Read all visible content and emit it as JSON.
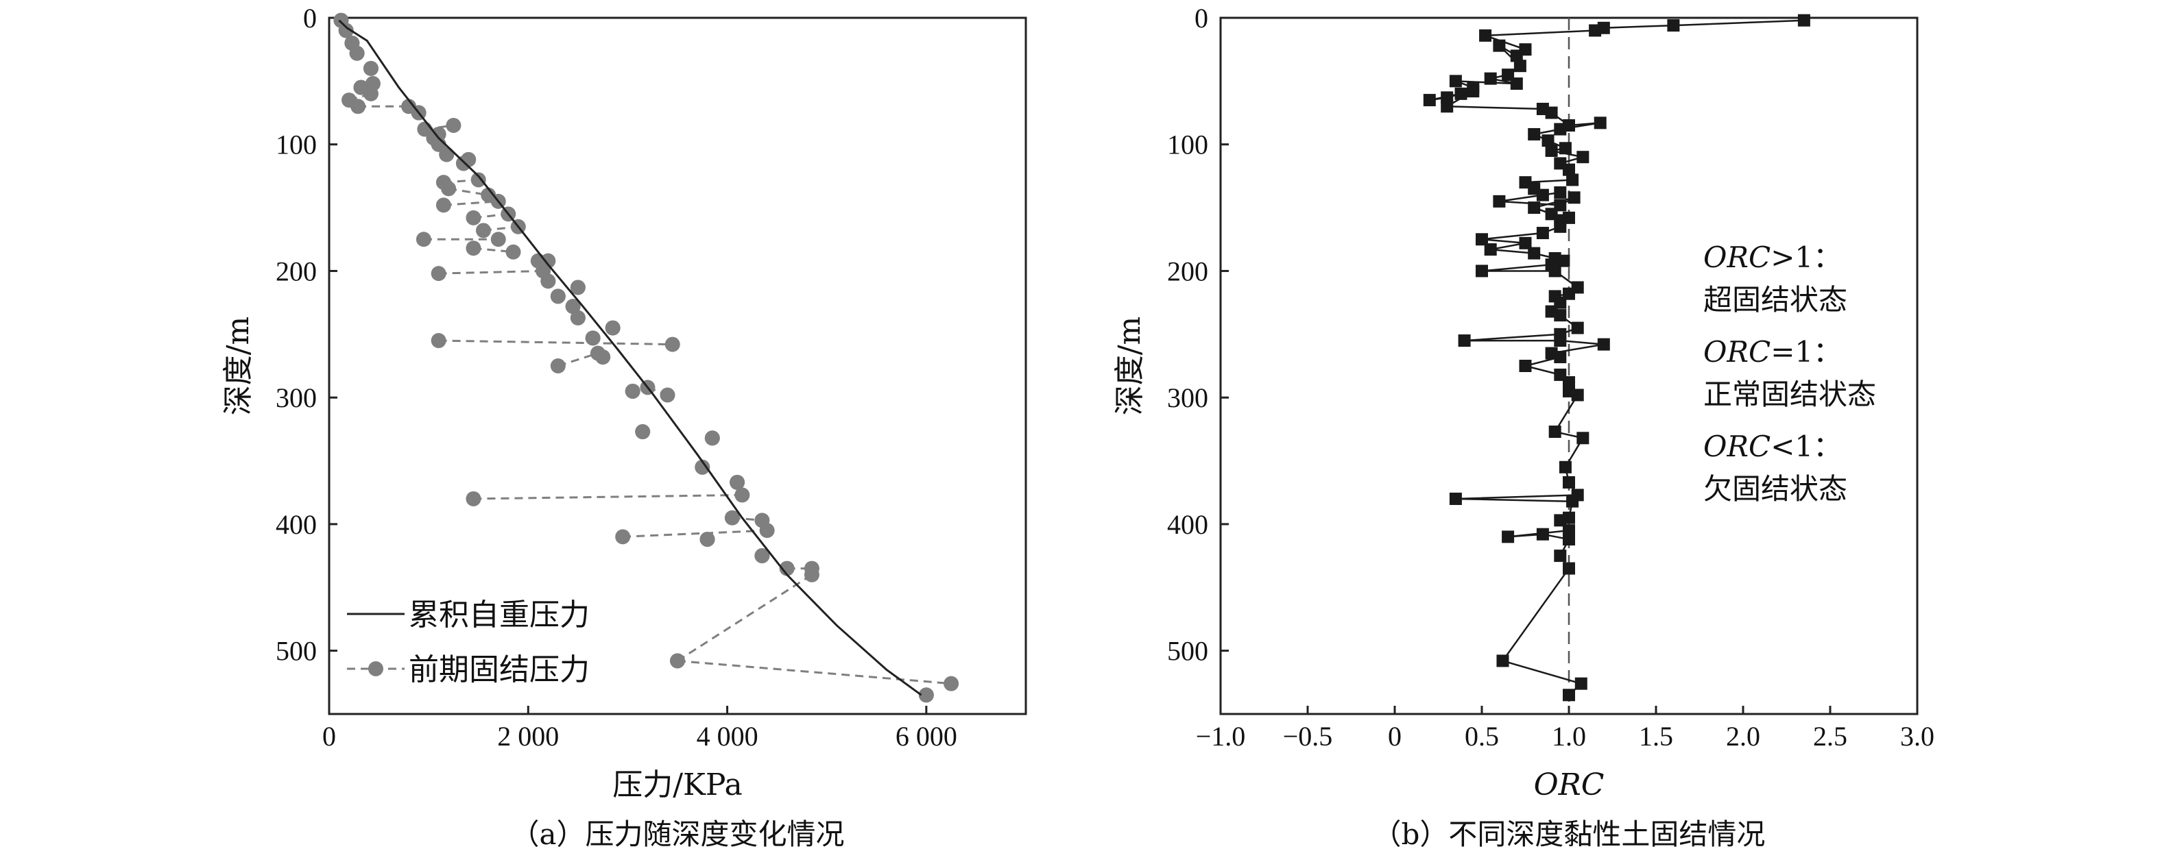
{
  "chart_data": [
    {
      "type": "line",
      "caption": "（a）压力随深度变化情况",
      "xlabel": "压力/KPa",
      "ylabel": "深度/m",
      "xlim": [
        0,
        7000
      ],
      "ylim": [
        550,
        0
      ],
      "x_ticks": [
        "0",
        "2 000",
        "4 000",
        "6 000"
      ],
      "x_tick_values": [
        0,
        2000,
        4000,
        6000
      ],
      "y_ticks": [
        "0",
        "100",
        "200",
        "300",
        "400",
        "500"
      ],
      "y_tick_values": [
        0,
        100,
        200,
        300,
        400,
        500
      ],
      "legend": {
        "placement": "bottom-left",
        "entries": [
          "累积自重压力",
          "前期固结压力"
        ]
      },
      "series": [
        {
          "name": "累积自重压力",
          "style": "solid",
          "color": "#222222",
          "points": [
            [
              100,
              2
            ],
            [
              180,
              8
            ],
            [
              380,
              18
            ],
            [
              700,
              55
            ],
            [
              1100,
              95
            ],
            [
              1500,
              125
            ],
            [
              1900,
              165
            ],
            [
              2200,
              195
            ],
            [
              2550,
              228
            ],
            [
              2900,
              262
            ],
            [
              3250,
              297
            ],
            [
              3700,
              345
            ],
            [
              4150,
              395
            ],
            [
              4600,
              440
            ],
            [
              5100,
              480
            ],
            [
              5600,
              515
            ],
            [
              5950,
              535
            ]
          ]
        },
        {
          "name": "前期固结压力",
          "style": "dashed-markers",
          "color": "#7f7f7f",
          "pairs": [
            [
              [
                120,
                2
              ],
              [
                120,
                2
              ]
            ],
            [
              [
                170,
                10
              ],
              [
                170,
                10
              ]
            ],
            [
              [
                230,
                20
              ],
              [
                230,
                20
              ]
            ],
            [
              [
                280,
                28
              ],
              [
                280,
                28
              ]
            ],
            [
              [
                420,
                40
              ],
              [
                420,
                40
              ]
            ],
            [
              [
                440,
                52
              ],
              [
                440,
                52
              ]
            ],
            [
              [
                320,
                55
              ],
              [
                320,
                55
              ]
            ],
            [
              [
                200,
                65
              ],
              [
                420,
                60
              ]
            ],
            [
              [
                290,
                70
              ],
              [
                800,
                70
              ]
            ],
            [
              [
                900,
                75
              ],
              [
                900,
                75
              ]
            ],
            [
              [
                960,
                88
              ],
              [
                1250,
                85
              ]
            ],
            [
              [
                1050,
                95
              ],
              [
                1100,
                92
              ]
            ],
            [
              [
                1100,
                100
              ],
              [
                1100,
                100
              ]
            ],
            [
              [
                1180,
                108
              ],
              [
                1180,
                108
              ]
            ],
            [
              [
                1350,
                115
              ],
              [
                1350,
                115
              ]
            ],
            [
              [
                1400,
                112
              ],
              [
                1400,
                112
              ]
            ],
            [
              [
                1150,
                130
              ],
              [
                1500,
                128
              ]
            ],
            [
              [
                1200,
                135
              ],
              [
                1600,
                140
              ]
            ],
            [
              [
                1150,
                148
              ],
              [
                1700,
                145
              ]
            ],
            [
              [
                1450,
                158
              ],
              [
                1800,
                155
              ]
            ],
            [
              [
                1550,
                168
              ],
              [
                1900,
                165
              ]
            ],
            [
              [
                950,
                175
              ],
              [
                1700,
                175
              ]
            ],
            [
              [
                1450,
                182
              ],
              [
                1850,
                185
              ]
            ],
            [
              [
                1100,
                202
              ],
              [
                2150,
                200
              ]
            ],
            [
              [
                2100,
                192
              ],
              [
                2200,
                192
              ]
            ],
            [
              [
                2200,
                208
              ],
              [
                2200,
                208
              ]
            ],
            [
              [
                2500,
                213
              ],
              [
                2500,
                213
              ]
            ],
            [
              [
                2300,
                220
              ],
              [
                2300,
                220
              ]
            ],
            [
              [
                2450,
                228
              ],
              [
                2450,
                228
              ]
            ],
            [
              [
                2500,
                237
              ],
              [
                2500,
                237
              ]
            ],
            [
              [
                2850,
                245
              ],
              [
                2850,
                245
              ]
            ],
            [
              [
                1100,
                255
              ],
              [
                3450,
                258
              ]
            ],
            [
              [
                2650,
                253
              ],
              [
                2650,
                253
              ]
            ],
            [
              [
                2750,
                268
              ],
              [
                2750,
                268
              ]
            ],
            [
              [
                2300,
                275
              ],
              [
                2700,
                265
              ]
            ],
            [
              [
                3050,
                295
              ],
              [
                3050,
                295
              ]
            ],
            [
              [
                3200,
                292
              ],
              [
                3400,
                298
              ]
            ],
            [
              [
                3150,
                327
              ],
              [
                3150,
                327
              ]
            ],
            [
              [
                3850,
                332
              ],
              [
                3850,
                332
              ]
            ],
            [
              [
                3750,
                355
              ],
              [
                3750,
                355
              ]
            ],
            [
              [
                4100,
                367
              ],
              [
                4100,
                367
              ]
            ],
            [
              [
                1450,
                380
              ],
              [
                4150,
                377
              ]
            ],
            [
              [
                4050,
                395
              ],
              [
                4350,
                397
              ]
            ],
            [
              [
                2950,
                410
              ],
              [
                4400,
                405
              ]
            ],
            [
              [
                3800,
                412
              ],
              [
                3800,
                412
              ]
            ],
            [
              [
                4350,
                425
              ],
              [
                4350,
                425
              ]
            ],
            [
              [
                4600,
                435
              ],
              [
                4850,
                435
              ]
            ],
            [
              [
                3500,
                508
              ],
              [
                4850,
                440
              ]
            ],
            [
              [
                3500,
                508
              ],
              [
                6250,
                526
              ]
            ],
            [
              [
                6000,
                535
              ],
              [
                6000,
                535
              ]
            ]
          ]
        }
      ]
    },
    {
      "type": "line",
      "caption": "（b）不同深度黏性土固结情况",
      "xlabel": "ORC",
      "ylabel": "深度/m",
      "xlim": [
        -1.0,
        3.0
      ],
      "ylim": [
        550,
        0
      ],
      "x_ticks": [
        "−1.0",
        "−0.5",
        "0",
        "0.5",
        "1.0",
        "1.5",
        "2.0",
        "2.5",
        "3.0"
      ],
      "x_tick_values": [
        -1.0,
        -0.5,
        0,
        0.5,
        1.0,
        1.5,
        2.0,
        2.5,
        3.0
      ],
      "y_ticks": [
        "0",
        "100",
        "200",
        "300",
        "400",
        "500"
      ],
      "y_tick_values": [
        0,
        100,
        200,
        300,
        400,
        500
      ],
      "reference_line": {
        "x": 1.0,
        "style": "dashed"
      },
      "annotations": [
        {
          "italic": "ORC",
          "rest": ">1：",
          "desc": "超固结状态"
        },
        {
          "italic": "ORC",
          "rest": "=1：",
          "desc": "正常固结状态"
        },
        {
          "italic": "ORC",
          "rest": "<1：",
          "desc": "欠固结状态"
        }
      ],
      "series": [
        {
          "name": "",
          "style": "solid-square-markers",
          "color": "#1a1a1a",
          "points": [
            [
              2.35,
              2
            ],
            [
              1.6,
              6
            ],
            [
              1.2,
              8
            ],
            [
              1.15,
              10
            ],
            [
              0.52,
              14
            ],
            [
              0.75,
              25
            ],
            [
              0.7,
              30
            ],
            [
              0.6,
              22
            ],
            [
              0.72,
              38
            ],
            [
              0.65,
              45
            ],
            [
              0.55,
              48
            ],
            [
              0.7,
              52
            ],
            [
              0.35,
              50
            ],
            [
              0.45,
              55
            ],
            [
              0.38,
              60
            ],
            [
              0.3,
              63
            ],
            [
              0.2,
              65
            ],
            [
              0.45,
              58
            ],
            [
              0.3,
              70
            ],
            [
              0.85,
              72
            ],
            [
              0.9,
              75
            ],
            [
              1.0,
              85
            ],
            [
              1.18,
              83
            ],
            [
              0.95,
              88
            ],
            [
              0.8,
              92
            ],
            [
              0.88,
              97
            ],
            [
              0.98,
              103
            ],
            [
              0.9,
              105
            ],
            [
              1.08,
              110
            ],
            [
              0.95,
              115
            ],
            [
              1.0,
              120
            ],
            [
              1.02,
              128
            ],
            [
              0.75,
              130
            ],
            [
              0.8,
              135
            ],
            [
              0.85,
              140
            ],
            [
              0.95,
              138
            ],
            [
              0.6,
              145
            ],
            [
              0.95,
              148
            ],
            [
              1.03,
              142
            ],
            [
              0.8,
              150
            ],
            [
              0.9,
              155
            ],
            [
              0.95,
              160
            ],
            [
              1.0,
              158
            ],
            [
              0.95,
              165
            ],
            [
              0.85,
              170
            ],
            [
              0.5,
              175
            ],
            [
              0.75,
              178
            ],
            [
              0.55,
              183
            ],
            [
              0.8,
              186
            ],
            [
              0.92,
              190
            ],
            [
              0.97,
              192
            ],
            [
              0.9,
              195
            ],
            [
              0.5,
              200
            ],
            [
              0.92,
              200
            ],
            [
              1.05,
              213
            ],
            [
              1.0,
              218
            ],
            [
              0.92,
              220
            ],
            [
              0.95,
              225
            ],
            [
              0.9,
              232
            ],
            [
              0.95,
              235
            ],
            [
              1.05,
              245
            ],
            [
              0.95,
              250
            ],
            [
              0.4,
              255
            ],
            [
              0.95,
              255
            ],
            [
              1.2,
              258
            ],
            [
              0.9,
              265
            ],
            [
              0.95,
              268
            ],
            [
              0.75,
              275
            ],
            [
              0.95,
              282
            ],
            [
              1.0,
              288
            ],
            [
              1.0,
              295
            ],
            [
              1.05,
              298
            ],
            [
              0.92,
              327
            ],
            [
              1.08,
              332
            ],
            [
              0.98,
              355
            ],
            [
              1.0,
              367
            ],
            [
              1.05,
              377
            ],
            [
              0.35,
              380
            ],
            [
              1.02,
              382
            ],
            [
              1.0,
              395
            ],
            [
              0.95,
              397
            ],
            [
              1.0,
              405
            ],
            [
              0.65,
              410
            ],
            [
              0.85,
              408
            ],
            [
              1.0,
              412
            ],
            [
              0.95,
              425
            ],
            [
              1.0,
              435
            ],
            [
              0.62,
              508
            ],
            [
              1.07,
              526
            ],
            [
              1.0,
              535
            ]
          ]
        }
      ]
    }
  ]
}
